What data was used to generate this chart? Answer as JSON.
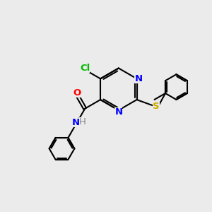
{
  "background_color": "#ebebeb",
  "bond_color": "#000000",
  "atom_colors": {
    "N": "#0000ff",
    "O": "#ff0000",
    "S": "#ccaa00",
    "Cl": "#00bb00",
    "H": "#888888",
    "C": "#000000"
  },
  "bond_width": 1.5,
  "font_size": 9.5
}
